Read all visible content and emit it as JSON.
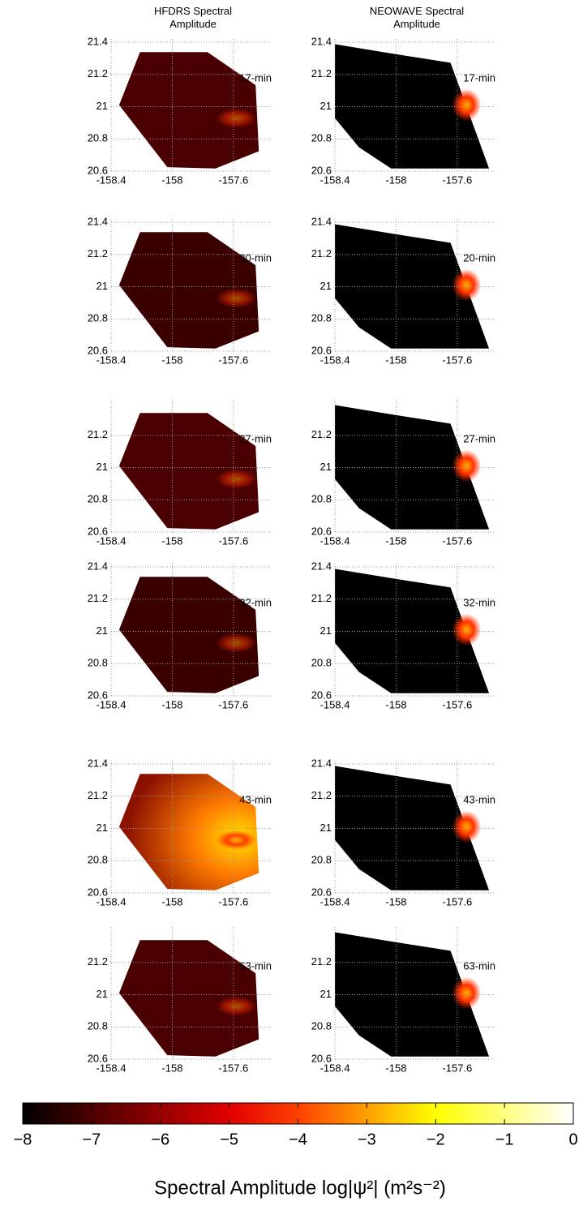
{
  "chart_data": {
    "type": "map-panels",
    "columns": [
      "HFDRS Spectral Amplitude",
      "NEOWAVE Spectral Amplitude"
    ],
    "xlim": [
      -158.4,
      -157.35
    ],
    "ylim": [
      20.6,
      21.42
    ],
    "xticks": [
      -158.4,
      -158,
      -157.6
    ],
    "grid": true,
    "panels": [
      {
        "label": "17-min",
        "yticks": [
          20.6,
          20.8,
          21,
          21.2,
          21.4
        ]
      },
      {
        "label": "20-min",
        "yticks": [
          20.6,
          20.8,
          21,
          21.2,
          21.4
        ]
      },
      {
        "label": "27-min",
        "yticks": [
          20.6,
          20.8,
          21,
          21.2
        ]
      },
      {
        "label": "32-min",
        "yticks": [
          20.6,
          20.8,
          21,
          21.2,
          21.4
        ]
      },
      {
        "label": "43-min",
        "yticks": [
          20.6,
          20.8,
          21,
          21.2,
          21.4
        ]
      },
      {
        "label": "63-min",
        "yticks": [
          20.6,
          20.8,
          21,
          21.2
        ]
      }
    ],
    "colorbar": {
      "lim": [
        -8,
        0
      ],
      "ticks": [
        {
          "value": -8,
          "label": "−8"
        },
        {
          "value": -7,
          "label": "−7"
        },
        {
          "value": -6,
          "label": "−6"
        },
        {
          "value": -5,
          "label": "−5"
        },
        {
          "value": -4,
          "label": "−4"
        },
        {
          "value": -3,
          "label": "−3"
        },
        {
          "value": -2,
          "label": "−2"
        },
        {
          "value": -1,
          "label": "−1"
        },
        0
      ],
      "label": "Spectral Amplitude log|ψ²| (m²s⁻²)"
    }
  }
}
